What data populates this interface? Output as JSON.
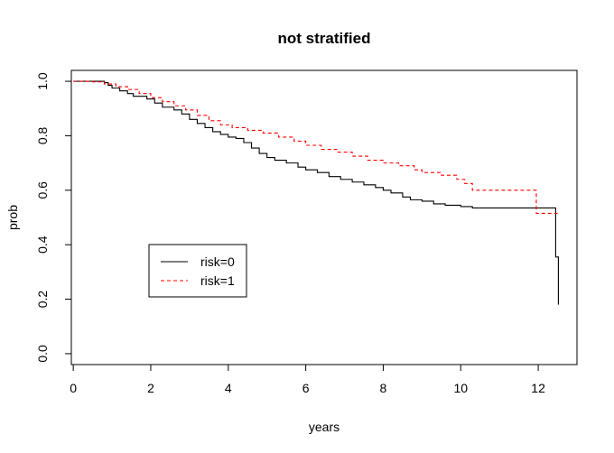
{
  "chart_data": {
    "type": "line",
    "title": "not stratified",
    "xlabel": "years",
    "ylabel": "prob",
    "xlim": [
      0,
      13
    ],
    "ylim": [
      0.0,
      1.0
    ],
    "xticks": [
      0,
      2,
      4,
      6,
      8,
      10,
      12
    ],
    "yticks": [
      0.0,
      0.2,
      0.4,
      0.6,
      0.8,
      1.0
    ],
    "grid": false,
    "legend_position": "left",
    "series": [
      {
        "name": "risk=0",
        "color": "#000000",
        "dash": "solid",
        "step": true,
        "points": [
          [
            0,
            1.0
          ],
          [
            0.8,
            0.995
          ],
          [
            0.9,
            0.985
          ],
          [
            1.0,
            0.975
          ],
          [
            1.2,
            0.965
          ],
          [
            1.4,
            0.955
          ],
          [
            1.55,
            0.945
          ],
          [
            1.9,
            0.935
          ],
          [
            2.1,
            0.92
          ],
          [
            2.3,
            0.905
          ],
          [
            2.6,
            0.895
          ],
          [
            2.8,
            0.88
          ],
          [
            3.0,
            0.86
          ],
          [
            3.2,
            0.845
          ],
          [
            3.4,
            0.83
          ],
          [
            3.6,
            0.815
          ],
          [
            3.8,
            0.805
          ],
          [
            4.0,
            0.795
          ],
          [
            4.2,
            0.79
          ],
          [
            4.4,
            0.775
          ],
          [
            4.6,
            0.755
          ],
          [
            4.8,
            0.735
          ],
          [
            5.0,
            0.72
          ],
          [
            5.2,
            0.71
          ],
          [
            5.5,
            0.7
          ],
          [
            5.8,
            0.685
          ],
          [
            6.0,
            0.675
          ],
          [
            6.3,
            0.665
          ],
          [
            6.6,
            0.65
          ],
          [
            6.9,
            0.64
          ],
          [
            7.2,
            0.63
          ],
          [
            7.5,
            0.62
          ],
          [
            7.8,
            0.61
          ],
          [
            8.0,
            0.6
          ],
          [
            8.2,
            0.59
          ],
          [
            8.5,
            0.575
          ],
          [
            8.7,
            0.565
          ],
          [
            9.0,
            0.56
          ],
          [
            9.3,
            0.55
          ],
          [
            9.6,
            0.545
          ],
          [
            10.0,
            0.54
          ],
          [
            10.3,
            0.535
          ],
          [
            12.45,
            0.535
          ],
          [
            12.45,
            0.355
          ],
          [
            12.52,
            0.355
          ],
          [
            12.52,
            0.18
          ]
        ]
      },
      {
        "name": "risk=1",
        "color": "#ff0000",
        "dash": "dashed",
        "step": true,
        "points": [
          [
            0,
            1.0
          ],
          [
            0.5,
            0.998
          ],
          [
            0.8,
            0.99
          ],
          [
            1.1,
            0.98
          ],
          [
            1.4,
            0.97
          ],
          [
            1.7,
            0.955
          ],
          [
            2.0,
            0.94
          ],
          [
            2.3,
            0.925
          ],
          [
            2.6,
            0.91
          ],
          [
            2.9,
            0.895
          ],
          [
            3.2,
            0.875
          ],
          [
            3.5,
            0.855
          ],
          [
            3.8,
            0.84
          ],
          [
            4.1,
            0.83
          ],
          [
            4.5,
            0.82
          ],
          [
            4.9,
            0.81
          ],
          [
            5.3,
            0.795
          ],
          [
            5.7,
            0.78
          ],
          [
            6.0,
            0.765
          ],
          [
            6.4,
            0.75
          ],
          [
            6.8,
            0.74
          ],
          [
            7.2,
            0.725
          ],
          [
            7.6,
            0.71
          ],
          [
            8.0,
            0.7
          ],
          [
            8.4,
            0.69
          ],
          [
            8.8,
            0.675
          ],
          [
            9.0,
            0.665
          ],
          [
            9.5,
            0.655
          ],
          [
            9.9,
            0.64
          ],
          [
            10.1,
            0.625
          ],
          [
            10.3,
            0.6
          ],
          [
            11.95,
            0.6
          ],
          [
            11.95,
            0.515
          ],
          [
            12.5,
            0.515
          ]
        ]
      }
    ]
  }
}
